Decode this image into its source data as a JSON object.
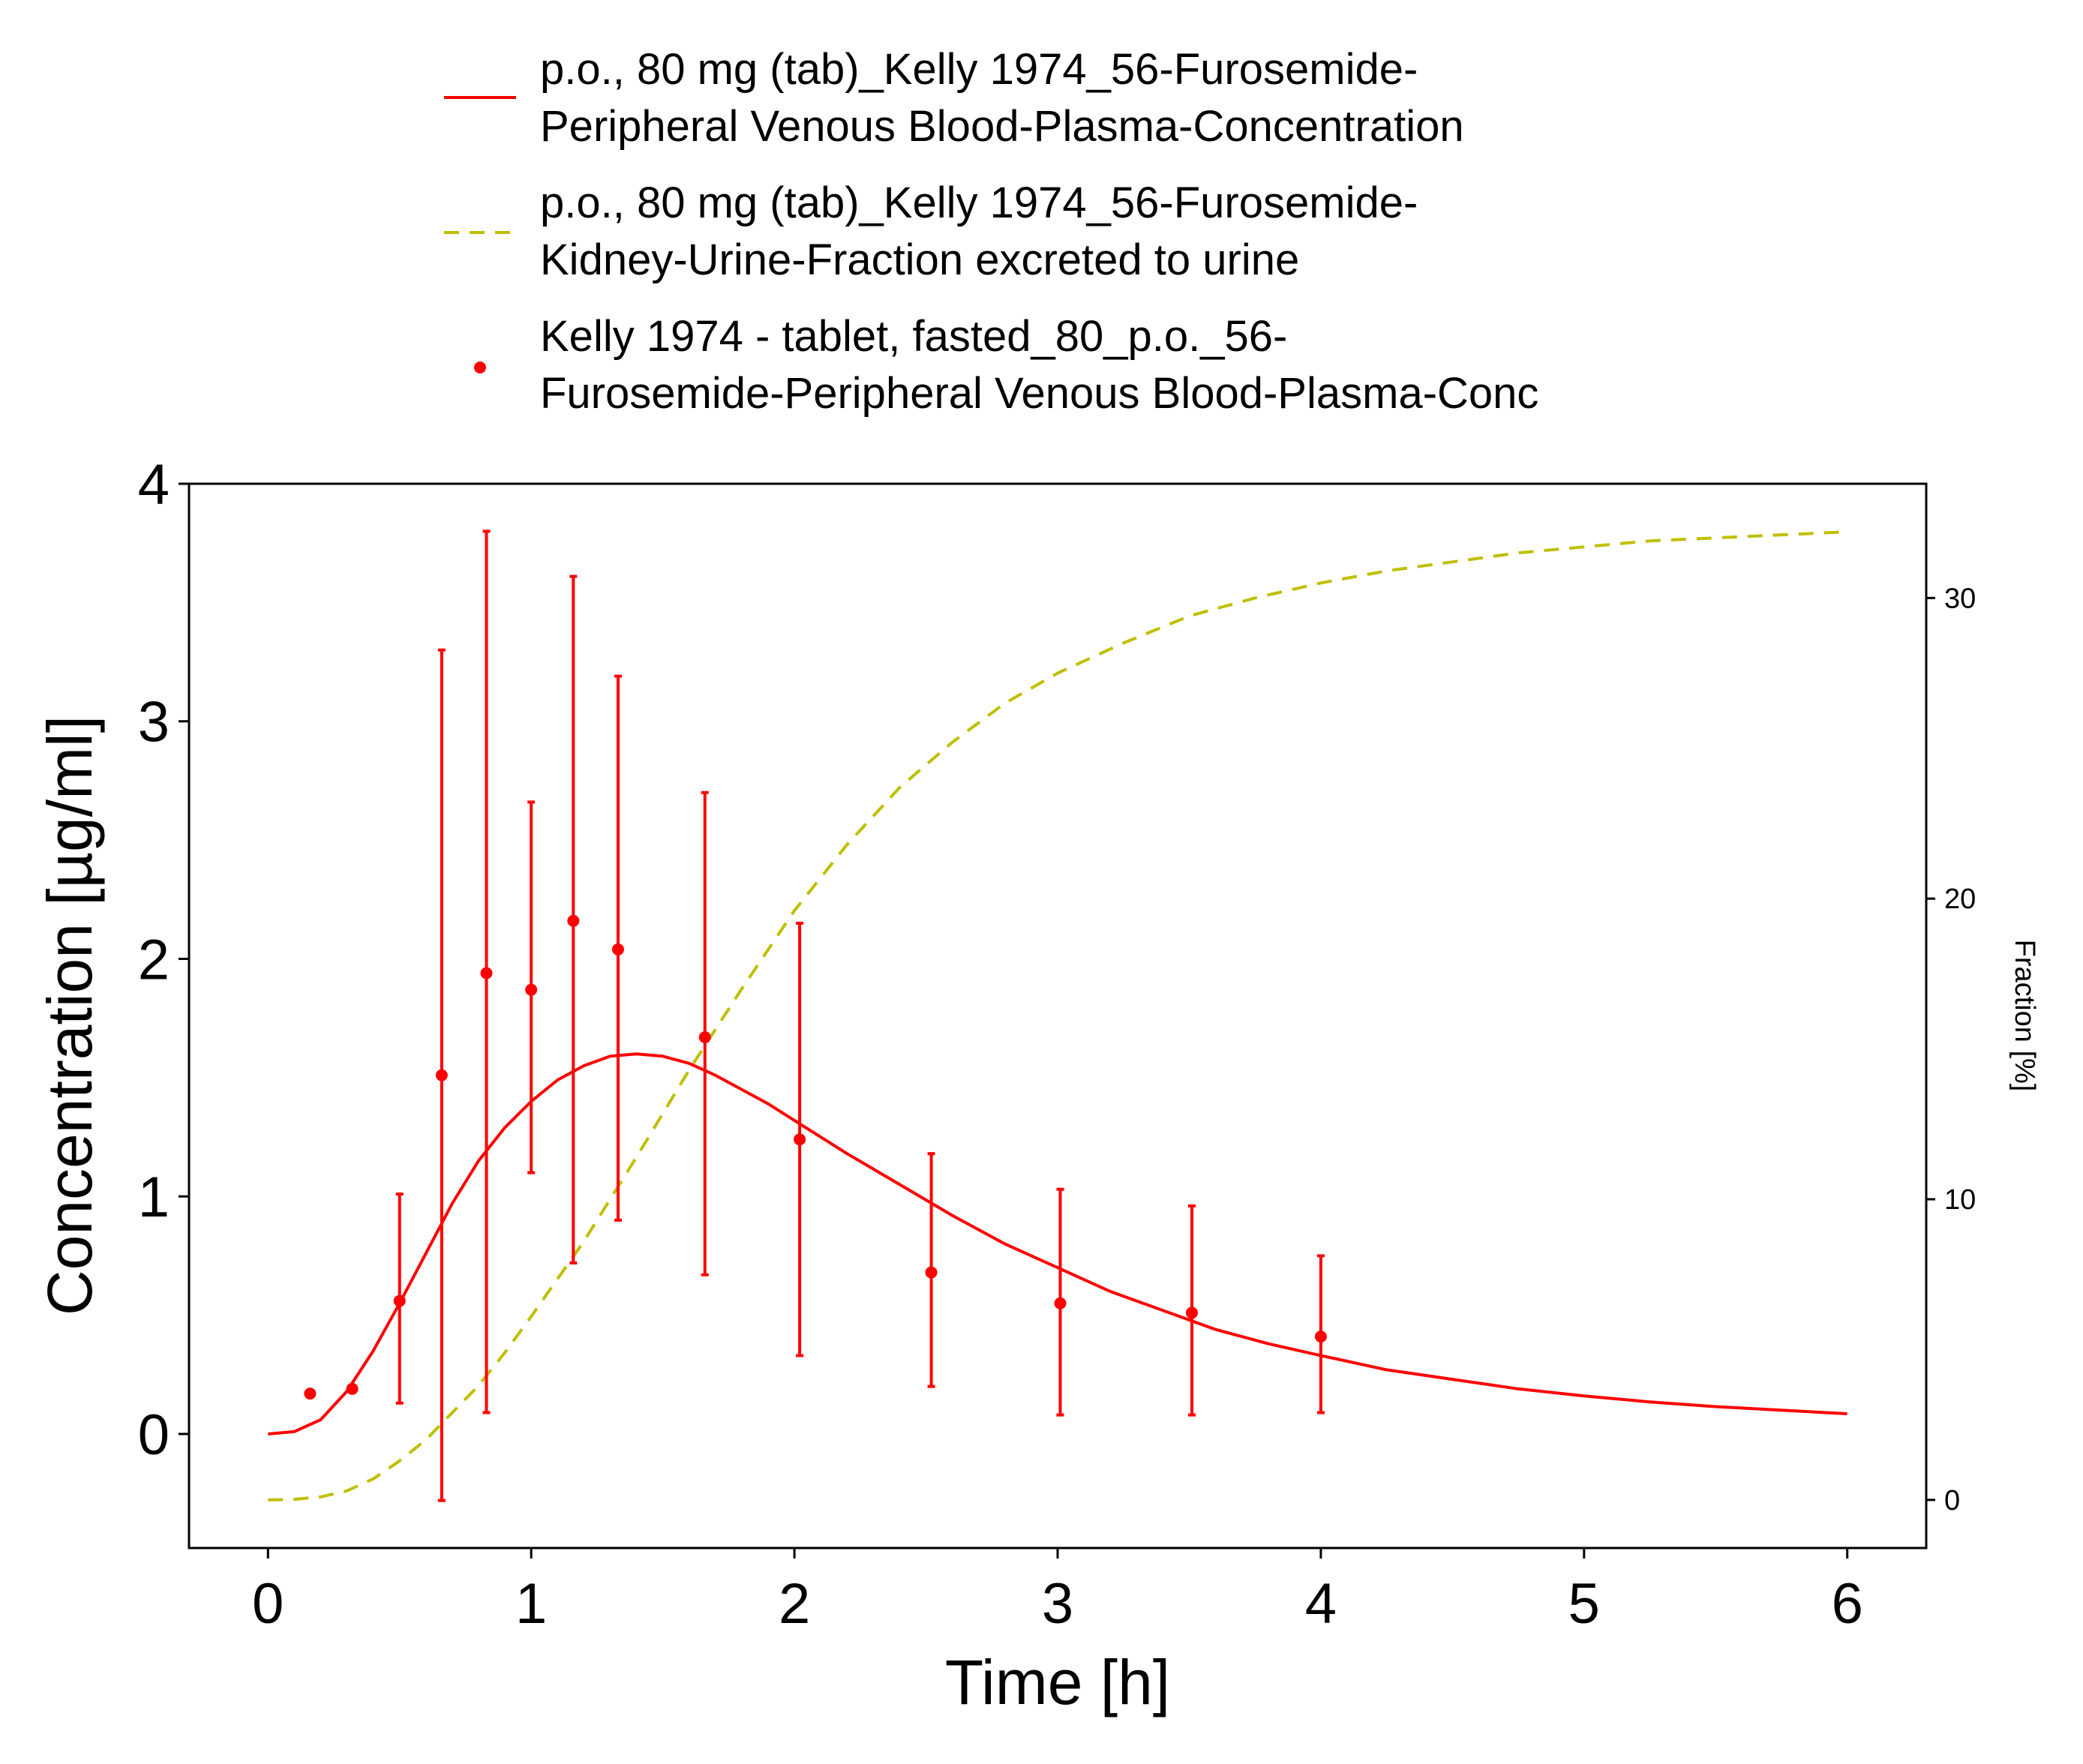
{
  "chart_data": {
    "type": "line",
    "xlabel": "Time [h]",
    "ylabel": "Concentration [µg/ml]",
    "y2label": "Fraction [%]",
    "xlim": [
      -0.3,
      6.3
    ],
    "ylim": [
      -0.48,
      4.0
    ],
    "y2lim": [
      -1.6,
      33.8
    ],
    "xticks": [
      "0",
      "1",
      "2",
      "3",
      "4",
      "5",
      "6"
    ],
    "yticks": [
      "0",
      "1",
      "2",
      "3",
      "4"
    ],
    "y2ticks": [
      "0",
      "10",
      "20",
      "30"
    ],
    "grid": false,
    "legend_position": "top",
    "colors": {
      "concentration": "#ff0000",
      "fraction": "#bfbf00",
      "observed": "#ff0000"
    },
    "legend": [
      {
        "style": "solid-line",
        "color": "#ff0000",
        "line1": "p.o., 80 mg (tab)_Kelly 1974_56-Furosemide-",
        "line2": "Peripheral Venous Blood-Plasma-Concentration"
      },
      {
        "style": "dashed-line",
        "color": "#bfbf00",
        "line1": "p.o., 80 mg (tab)_Kelly 1974_56-Furosemide-",
        "line2": "Kidney-Urine-Fraction excreted to urine"
      },
      {
        "style": "point",
        "color": "#ff0000",
        "line1": "Kelly 1974 - tablet, fasted_80_p.o._56-",
        "line2": "Furosemide-Peripheral Venous Blood-Plasma-Conc"
      }
    ],
    "series": [
      {
        "name": "p.o., 80 mg (tab)_Kelly 1974_56-Furosemide-Peripheral Venous Blood-Plasma-Concentration",
        "axis": "left",
        "style": "solid",
        "x": [
          0,
          0.1,
          0.2,
          0.3,
          0.4,
          0.5,
          0.6,
          0.7,
          0.8,
          0.9,
          1.0,
          1.1,
          1.2,
          1.3,
          1.4,
          1.5,
          1.6,
          1.7,
          1.8,
          1.9,
          2.0,
          2.2,
          2.4,
          2.6,
          2.8,
          3.0,
          3.2,
          3.4,
          3.6,
          3.8,
          4.0,
          4.25,
          4.5,
          4.75,
          5.0,
          5.25,
          5.5,
          5.75,
          6.0
        ],
        "y": [
          0,
          0.01,
          0.06,
          0.18,
          0.35,
          0.55,
          0.76,
          0.97,
          1.15,
          1.29,
          1.4,
          1.49,
          1.55,
          1.59,
          1.6,
          1.59,
          1.56,
          1.51,
          1.45,
          1.39,
          1.32,
          1.18,
          1.05,
          0.92,
          0.8,
          0.7,
          0.6,
          0.52,
          0.44,
          0.38,
          0.33,
          0.27,
          0.23,
          0.19,
          0.16,
          0.135,
          0.115,
          0.1,
          0.085
        ]
      },
      {
        "name": "p.o., 80 mg (tab)_Kelly 1974_56-Furosemide-Kidney-Urine-Fraction excreted to urine",
        "axis": "right",
        "style": "dashed",
        "x": [
          0,
          0.1,
          0.2,
          0.3,
          0.4,
          0.5,
          0.6,
          0.7,
          0.8,
          0.9,
          1.0,
          1.2,
          1.4,
          1.6,
          1.8,
          2.0,
          2.2,
          2.4,
          2.6,
          2.8,
          3.0,
          3.25,
          3.5,
          3.75,
          4.0,
          4.25,
          4.5,
          4.75,
          5.0,
          5.25,
          5.5,
          5.75,
          6.0
        ],
        "y": [
          0,
          0.02,
          0.1,
          0.3,
          0.7,
          1.3,
          2.0,
          2.9,
          3.8,
          4.9,
          6.1,
          8.6,
          11.4,
          14.3,
          17.0,
          19.6,
          21.8,
          23.7,
          25.2,
          26.5,
          27.5,
          28.5,
          29.4,
          30.0,
          30.5,
          30.9,
          31.2,
          31.5,
          31.7,
          31.9,
          32.0,
          32.1,
          32.2
        ]
      },
      {
        "name": "Kelly 1974 - tablet, fasted_80_p.o._56-Furosemide-Peripheral Venous Blood-Plasma-Conc",
        "axis": "left",
        "style": "points",
        "x": [
          0.16,
          0.32,
          0.5,
          0.66,
          0.83,
          1.0,
          1.16,
          1.33,
          1.66,
          2.02,
          2.52,
          3.01,
          3.51,
          4.0
        ],
        "y": [
          0.17,
          0.19,
          0.56,
          1.51,
          1.94,
          1.87,
          2.16,
          2.04,
          1.67,
          1.24,
          0.68,
          0.55,
          0.51,
          0.41
        ],
        "err_low": [
          null,
          null,
          0.13,
          -0.28,
          0.09,
          1.1,
          0.72,
          0.9,
          0.67,
          0.33,
          0.2,
          0.08,
          0.08,
          0.09
        ],
        "err_high": [
          null,
          null,
          1.01,
          3.3,
          3.8,
          2.66,
          3.61,
          3.19,
          2.7,
          2.15,
          1.18,
          1.03,
          0.96,
          0.75
        ]
      }
    ]
  }
}
